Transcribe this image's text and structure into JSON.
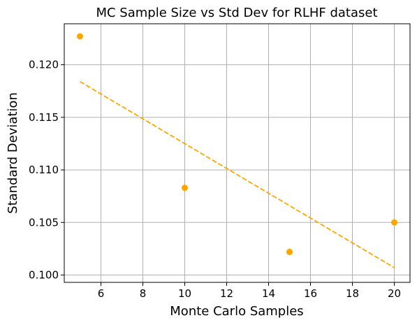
{
  "chart_data": {
    "type": "scatter",
    "title": "MC Sample Size vs Std Dev for RLHF dataset",
    "xlabel": "Monte Carlo Samples",
    "ylabel": "Standard Deviation",
    "xlim": [
      4.25,
      20.75
    ],
    "ylim": [
      0.0993,
      0.1239
    ],
    "xticks": [
      6,
      8,
      10,
      12,
      14,
      16,
      18,
      20
    ],
    "yticks": [
      0.1,
      0.105,
      0.11,
      0.115,
      0.12
    ],
    "xtick_labels": [
      "6",
      "8",
      "10",
      "12",
      "14",
      "16",
      "18",
      "20"
    ],
    "ytick_labels": [
      "0.100",
      "0.105",
      "0.110",
      "0.115",
      "0.120"
    ],
    "grid": true,
    "legend": "none",
    "series": [
      {
        "type": "scatter",
        "color": "#FFA500",
        "x": [
          5,
          10,
          15,
          20
        ],
        "y": [
          0.1227,
          0.1083,
          0.1022,
          0.105
        ]
      },
      {
        "type": "line",
        "style": "dashed",
        "color": "#FFA500",
        "x": [
          5,
          20
        ],
        "y": [
          0.1184,
          0.1007
        ]
      }
    ]
  }
}
